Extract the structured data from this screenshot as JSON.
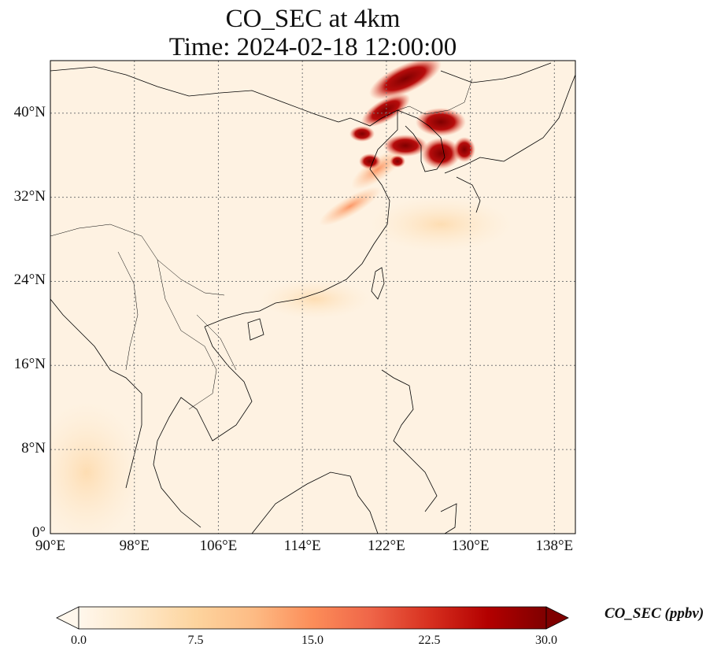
{
  "title": {
    "line1": "CO_SEC at 4km",
    "line2": "Time: 2024-02-18 12:00:00"
  },
  "map": {
    "lon_range": [
      90,
      140
    ],
    "lat_range": [
      0,
      45
    ],
    "gridlines": "dotted",
    "x_ticks": [
      "90°E",
      "98°E",
      "106°E",
      "114°E",
      "122°E",
      "130°E",
      "138°E"
    ],
    "y_ticks": [
      "0°",
      "8°N",
      "16°N",
      "24°N",
      "32°N",
      "40°N"
    ]
  },
  "colorbar": {
    "label": "CO_SEC (ppbv)",
    "colormap": "OrRd",
    "range": [
      0.0,
      30.0
    ],
    "extend": "both",
    "ticks": [
      "0.0",
      "7.5",
      "15.0",
      "22.5",
      "30.0"
    ],
    "colors": [
      "#fff7ec",
      "#fee8c8",
      "#fdd49e",
      "#fdbb84",
      "#fc8d59",
      "#ef6548",
      "#d7301f",
      "#b30000",
      "#7f0000"
    ]
  }
}
